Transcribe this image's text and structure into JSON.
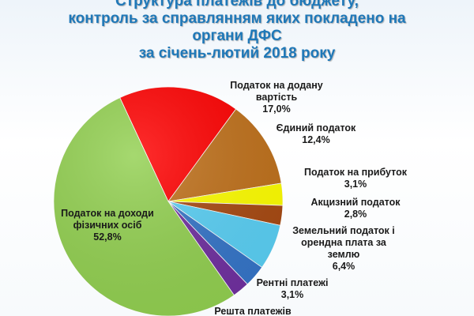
{
  "title_lines": [
    "Структура платежів до бюджету,",
    "контроль за справлянням яких покладено на",
    "органи ДФС",
    "за січень-лютий 2018 року"
  ],
  "colors": {
    "title": "#1f78b8",
    "slices": [
      "#ff0000",
      "#c0711b",
      "#ffff00",
      "#a84a12",
      "#5ad0f5",
      "#3575c8",
      "#7030a0",
      "#92d050"
    ]
  },
  "chart_data": {
    "type": "pie",
    "title": "Структура платежів до бюджету, контроль за справлянням яких покладено на органи ДФС за січень-лютий 2018 року",
    "start_angle_deg": 335,
    "slices": [
      {
        "label_lines": [
          "Податок на додану",
          "вартість"
        ],
        "value_text": "17,0%",
        "value": 17.0
      },
      {
        "label_lines": [
          "Єдиний податок"
        ],
        "value_text": "12,4%",
        "value": 12.4
      },
      {
        "label_lines": [
          "Податок на прибуток"
        ],
        "value_text": "3,1%",
        "value": 3.1
      },
      {
        "label_lines": [
          "Акцизний податок"
        ],
        "value_text": "2,8%",
        "value": 2.8
      },
      {
        "label_lines": [
          "Земельний податок і",
          "орендна плата за",
          "землю"
        ],
        "value_text": "6,4%",
        "value": 6.4
      },
      {
        "label_lines": [
          "Рентні платежі"
        ],
        "value_text": "3,1%",
        "value": 3.1
      },
      {
        "label_lines": [
          "Решта платежів"
        ],
        "value_text": "",
        "value": 2.4
      },
      {
        "label_lines": [
          "Податок на доходи",
          "фізичних осіб"
        ],
        "value_text": "52,8%",
        "value": 52.8
      }
    ]
  }
}
